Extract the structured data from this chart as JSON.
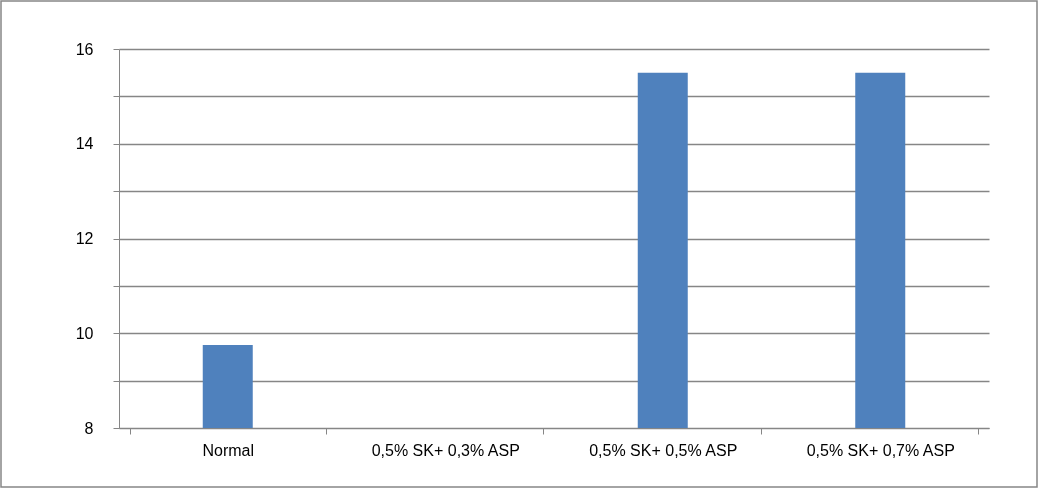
{
  "chart_data": {
    "type": "bar",
    "categories": [
      "Normal",
      "0,5% SK+ 0,3% ASP",
      "0,5% SK+ 0,5% ASP",
      "0,5% SK+ 0,7% ASP"
    ],
    "values": [
      9.75,
      null,
      15.5,
      15.5
    ],
    "color": "#4f81bd",
    "ylim": [
      8,
      16
    ],
    "yticks": [
      8,
      {
        "value": 9,
        "label": null
      },
      10,
      {
        "value": 11,
        "label": null
      },
      12,
      {
        "value": 13,
        "label": null
      },
      14,
      {
        "value": 15,
        "label": null
      },
      16
    ],
    "grid": "y"
  }
}
